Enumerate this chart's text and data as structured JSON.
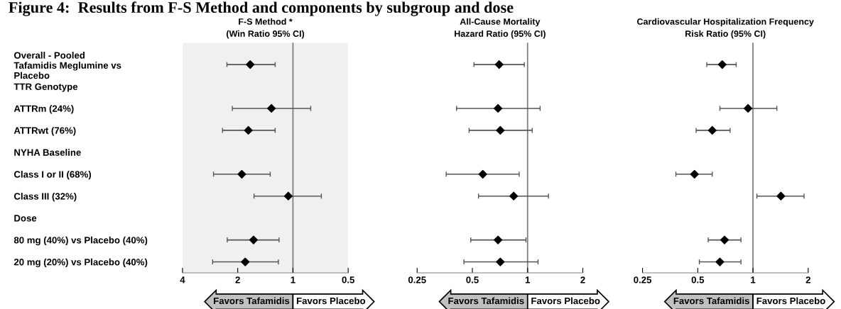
{
  "chart_data": [
    {
      "type": "scatter",
      "orientation": "horizontal",
      "title": "F-S Method *\n(Win Ratio 95% CI)",
      "categories": [
        "Overall - Pooled\nTafamidis Meglumine vs\nPlacebo",
        "TTR Genotype",
        "ATTRm (24%)",
        "ATTRwt (76%)",
        "NYHA Baseline",
        "Class I or II (68%)",
        "Class III (32%)",
        "Dose",
        "80 mg (40%) vs Placebo (40%)",
        "20 mg (20%) vs Placebo (40%)"
      ],
      "values": [
        1.71,
        null,
        1.31,
        1.75,
        null,
        1.9,
        1.06,
        null,
        1.64,
        1.82
      ],
      "errors": [
        [
          1.25,
          2.29
        ],
        null,
        [
          0.8,
          2.14
        ],
        [
          1.25,
          2.42
        ],
        null,
        [
          1.33,
          2.71
        ],
        [
          0.7,
          1.63
        ],
        null,
        [
          1.19,
          2.28
        ],
        [
          1.2,
          2.74
        ]
      ],
      "color": "#000000",
      "marker": "diamond",
      "log": "x",
      "xlim": [
        4,
        0.5
      ],
      "xticks": [
        4,
        2,
        1,
        0.5
      ],
      "ref_lines": [
        {
          "axis": "x",
          "value": 1,
          "color": "#808080"
        }
      ],
      "bands": [
        {
          "axis": "x",
          "from": 4,
          "to": 0.5,
          "color": "#f0f0f0"
        }
      ],
      "annotations": [
        "Figure 4:  Results from F-S Method and components by subgroup and dose",
        "Favors Tafamidis",
        "Favors Placebo"
      ],
      "grid": false
    },
    {
      "type": "scatter",
      "orientation": "horizontal",
      "title": "All-Cause Mortality\nHazard Ratio (95% CI)",
      "categories": [
        null,
        null,
        null,
        null,
        null,
        null,
        null,
        null,
        null,
        null
      ],
      "values": [
        0.7,
        null,
        0.69,
        0.71,
        null,
        0.57,
        0.84,
        null,
        0.69,
        0.71
      ],
      "errors": [
        [
          0.51,
          0.96
        ],
        null,
        [
          0.41,
          1.17
        ],
        [
          0.48,
          1.06
        ],
        null,
        [
          0.36,
          0.9
        ],
        [
          0.54,
          1.3
        ],
        null,
        [
          0.49,
          0.98
        ],
        [
          0.45,
          1.14
        ]
      ],
      "color": "#000000",
      "marker": "diamond",
      "log": "x",
      "xlim": [
        0.25,
        2
      ],
      "xticks": [
        0.25,
        0.5,
        1,
        2
      ],
      "ref_lines": [
        {
          "axis": "x",
          "value": 1,
          "color": "#808080"
        }
      ],
      "annotations": [
        "Favors Tafamidis",
        "Favors Placebo"
      ],
      "tick_labels": "x",
      "grid": false
    },
    {
      "type": "scatter",
      "orientation": "horizontal",
      "title": "Cardiovascular Hospitalization Frequency\nRisk Ratio (95% CI)",
      "categories": [
        null,
        null,
        null,
        null,
        null,
        null,
        null,
        null,
        null,
        null
      ],
      "values": [
        0.68,
        null,
        0.94,
        0.6,
        null,
        0.48,
        1.42,
        null,
        0.7,
        0.66
      ],
      "errors": [
        [
          0.56,
          0.81
        ],
        null,
        [
          0.66,
          1.35
        ],
        [
          0.49,
          0.75
        ],
        null,
        [
          0.38,
          0.6
        ],
        [
          1.05,
          1.9
        ],
        null,
        [
          0.57,
          0.86
        ],
        [
          0.51,
          0.86
        ]
      ],
      "color": "#000000",
      "marker": "diamond",
      "log": "x",
      "xlim": [
        0.25,
        2
      ],
      "xticks": [
        0.25,
        0.5,
        1,
        2
      ],
      "ref_lines": [
        {
          "axis": "x",
          "value": 1,
          "color": "#808080"
        }
      ],
      "annotations": [
        "Favors Tafamidis",
        "Favors Placebo"
      ],
      "tick_labels": "x",
      "grid": false
    }
  ]
}
